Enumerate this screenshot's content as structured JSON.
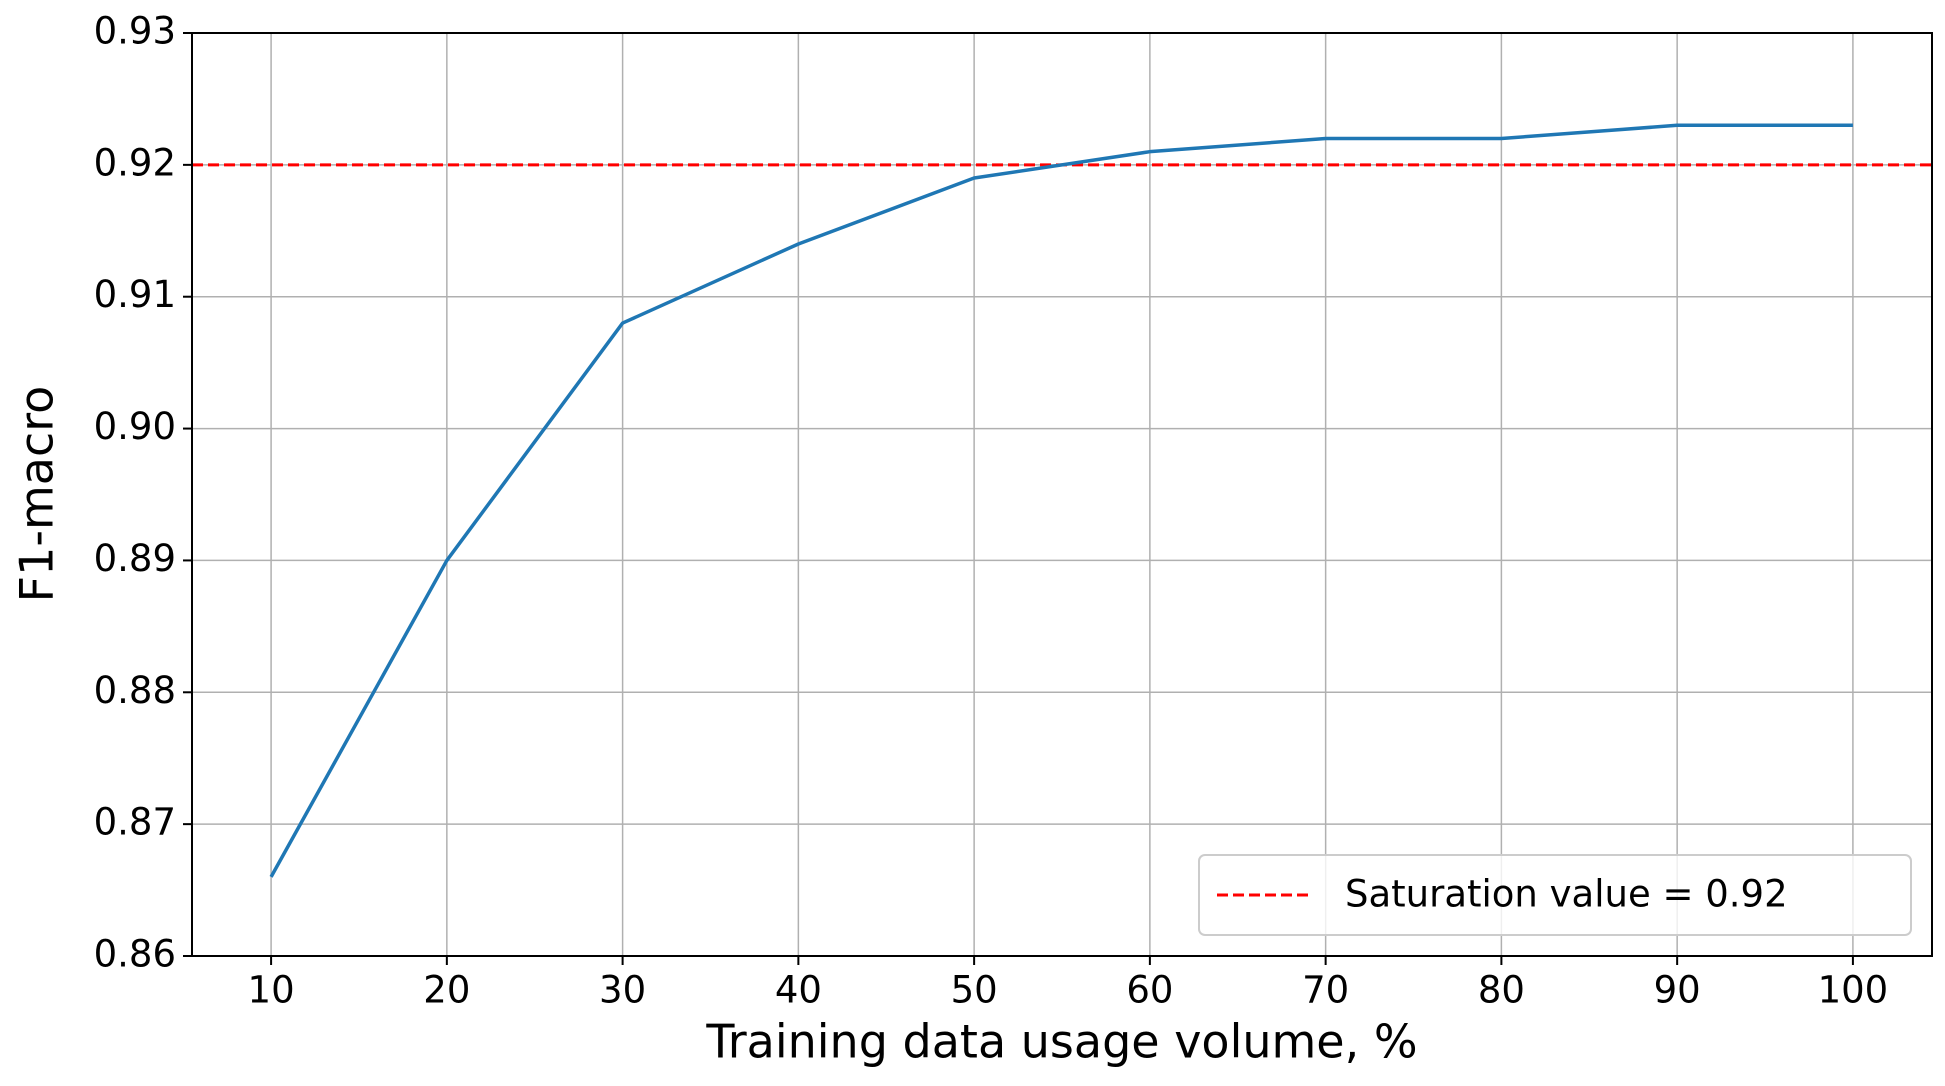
{
  "chart_data": {
    "type": "line",
    "xlabel": "Training data usage volume, %",
    "ylabel": "F1-macro",
    "x": [
      10,
      20,
      30,
      40,
      50,
      60,
      70,
      80,
      90,
      100
    ],
    "values": [
      0.866,
      0.89,
      0.908,
      0.914,
      0.919,
      0.921,
      0.922,
      0.922,
      0.923,
      0.923
    ],
    "color": "#1f77b4",
    "xlim": [
      5.5,
      104.5
    ],
    "ylim": [
      0.86,
      0.93
    ],
    "xticks": [
      10,
      20,
      30,
      40,
      50,
      60,
      70,
      80,
      90,
      100
    ],
    "yticks": [
      {
        "value": 0.86,
        "label": "0.86"
      },
      {
        "value": 0.87,
        "label": "0.87"
      },
      {
        "value": 0.88,
        "label": "0.88"
      },
      {
        "value": 0.89,
        "label": "0.89"
      },
      {
        "value": 0.9,
        "label": "0.90"
      },
      {
        "value": 0.91,
        "label": "0.91"
      },
      {
        "value": 0.92,
        "label": "0.92"
      },
      {
        "value": 0.93,
        "label": "0.93"
      }
    ],
    "grid": true,
    "hline": {
      "value": 0.92,
      "label": "Saturation value = 0.92",
      "color": "#ff0000"
    },
    "legend": "lower right"
  }
}
